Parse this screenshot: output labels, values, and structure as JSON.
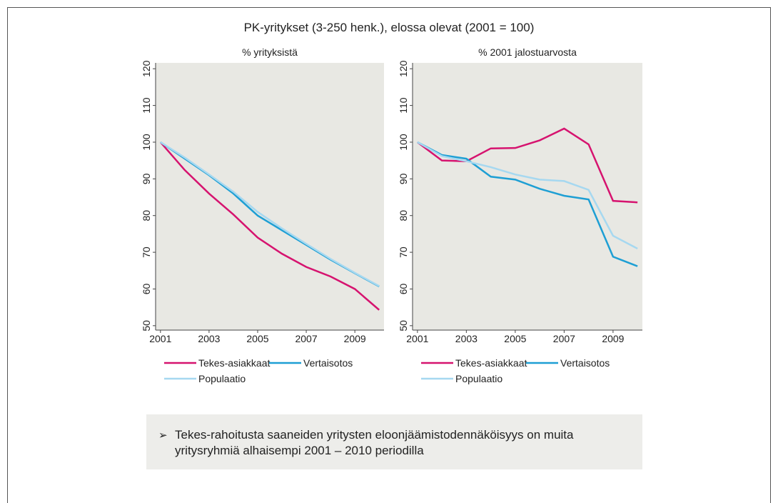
{
  "title": "PK-yritykset (3-250 henk.), elossa olevat (2001 = 100)",
  "note": "Tekes-rahoitusta saaneiden yritysten eloonjäämistodennäköisyys on muita yritysryhmiä alhaisempi 2001 – 2010 periodilla",
  "chart_data": [
    {
      "type": "line",
      "subtitle": "% yrityksistä",
      "x": [
        2001,
        2002,
        2003,
        2004,
        2005,
        2006,
        2007,
        2008,
        2009,
        2010
      ],
      "xlim": [
        2000.8,
        2010.2
      ],
      "xticks": [
        2001,
        2003,
        2005,
        2007,
        2009
      ],
      "ylim": [
        48.8,
        121.6
      ],
      "yticks": [
        50,
        60,
        70,
        80,
        90,
        100,
        110,
        120
      ],
      "series": [
        {
          "name": "Tekes-asiakkaat",
          "color": "#d6136f",
          "values": [
            100,
            92.4,
            86,
            80.3,
            74,
            69.6,
            66,
            63.4,
            60,
            54.3
          ]
        },
        {
          "name": "Vertaisotos",
          "color": "#1e9fd4",
          "values": [
            100,
            95.5,
            91,
            86,
            80,
            76,
            72,
            68,
            64.3,
            60.7
          ]
        },
        {
          "name": "Populaatio",
          "color": "#a6d8f0",
          "values": [
            100,
            95.8,
            91.2,
            86.5,
            81,
            76.5,
            72.3,
            68.2,
            64.4,
            60.8
          ]
        }
      ]
    },
    {
      "type": "line",
      "subtitle": "% 2001 jalostuarvosta",
      "x": [
        2001,
        2002,
        2003,
        2004,
        2005,
        2006,
        2007,
        2008,
        2009,
        2010
      ],
      "xlim": [
        2000.8,
        2010.2
      ],
      "xticks": [
        2001,
        2003,
        2005,
        2007,
        2009
      ],
      "ylim": [
        48.8,
        121.6
      ],
      "yticks": [
        50,
        60,
        70,
        80,
        90,
        100,
        110,
        120
      ],
      "series": [
        {
          "name": "Tekes-asiakkaat",
          "color": "#d6136f",
          "values": [
            100,
            95,
            94.8,
            98.3,
            98.4,
            100.5,
            103.7,
            99.4,
            84,
            83.6
          ]
        },
        {
          "name": "Vertaisotos",
          "color": "#1e9fd4",
          "values": [
            100,
            96.5,
            95.5,
            90.6,
            89.8,
            87.3,
            85.4,
            84.4,
            68.8,
            66.2
          ]
        },
        {
          "name": "Populaatio",
          "color": "#a6d8f0",
          "values": [
            100,
            96.2,
            94.8,
            93.2,
            91.2,
            89.8,
            89.4,
            87,
            74.5,
            71
          ]
        }
      ]
    }
  ]
}
